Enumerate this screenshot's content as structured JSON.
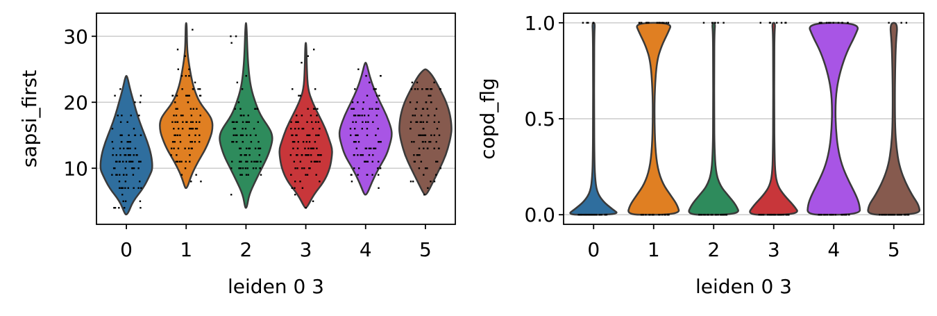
{
  "chart_data": [
    {
      "type": "violin",
      "ylabel": "sapsi_first",
      "xlabel": "leiden 0 3",
      "categories": [
        "0",
        "1",
        "2",
        "3",
        "4",
        "5"
      ],
      "colors": [
        "#2f6e9e",
        "#e07f22",
        "#2e8b5c",
        "#c8363a",
        "#a855e5",
        "#865a4e"
      ],
      "ylim": [
        1.5,
        33.5
      ],
      "yticks": [
        10,
        20,
        30
      ],
      "ytick_labels": [
        "10",
        "20",
        "30"
      ],
      "grid": true,
      "violins": [
        {
          "y": [
            3,
            5,
            7,
            9,
            10,
            12,
            14,
            16,
            18,
            20,
            22,
            24
          ],
          "density": [
            0.05,
            0.25,
            0.65,
            0.9,
            1.0,
            0.95,
            0.8,
            0.6,
            0.42,
            0.28,
            0.14,
            0.03
          ]
        },
        {
          "y": [
            7,
            9,
            11,
            13,
            15,
            16,
            17,
            18,
            20,
            22,
            24,
            27,
            29,
            32
          ],
          "density": [
            0.04,
            0.2,
            0.45,
            0.75,
            0.95,
            1.0,
            1.0,
            0.9,
            0.5,
            0.3,
            0.18,
            0.06,
            0.03,
            0.02
          ]
        },
        {
          "y": [
            4,
            6,
            8,
            10,
            12,
            14,
            15,
            16,
            18,
            20,
            22,
            24,
            27,
            32
          ],
          "density": [
            0.03,
            0.12,
            0.35,
            0.6,
            0.85,
            1.0,
            1.0,
            0.9,
            0.55,
            0.35,
            0.2,
            0.12,
            0.06,
            0.02
          ]
        },
        {
          "y": [
            4,
            6,
            8,
            10,
            12,
            13,
            14,
            16,
            18,
            20,
            22,
            25,
            29
          ],
          "density": [
            0.04,
            0.3,
            0.7,
            0.92,
            1.0,
            1.0,
            0.92,
            0.75,
            0.5,
            0.25,
            0.08,
            0.04,
            0.02
          ]
        },
        {
          "y": [
            6,
            8,
            10,
            12,
            14,
            15,
            16,
            18,
            20,
            22,
            24,
            26
          ],
          "density": [
            0.05,
            0.25,
            0.5,
            0.8,
            0.95,
            1.0,
            0.98,
            0.8,
            0.55,
            0.32,
            0.15,
            0.03
          ]
        },
        {
          "y": [
            6,
            8,
            10,
            12,
            14,
            15,
            16,
            18,
            20,
            22,
            24,
            25
          ],
          "density": [
            0.05,
            0.3,
            0.55,
            0.78,
            0.92,
            0.97,
            1.0,
            0.95,
            0.8,
            0.55,
            0.28,
            0.05
          ]
        }
      ]
    },
    {
      "type": "violin",
      "ylabel": "copd_flg",
      "xlabel": "leiden 0 3",
      "categories": [
        "0",
        "1",
        "2",
        "3",
        "4",
        "5"
      ],
      "colors": [
        "#2f6e9e",
        "#e07f22",
        "#2e8b5c",
        "#c8363a",
        "#a855e5",
        "#865a4e"
      ],
      "ylim": [
        -0.05,
        1.05
      ],
      "yticks": [
        0.0,
        0.5,
        1.0
      ],
      "ytick_labels": [
        "0.0",
        "0.5",
        "1.0"
      ],
      "grid": true,
      "violins": [
        {
          "y": [
            0,
            0.03,
            0.07,
            0.12,
            0.2,
            0.3,
            0.5,
            0.8,
            0.95,
            1.0
          ],
          "density": [
            1.0,
            0.7,
            0.35,
            0.12,
            0.05,
            0.03,
            0.02,
            0.02,
            0.03,
            0.05
          ]
        },
        {
          "y": [
            0,
            0.05,
            0.1,
            0.16,
            0.24,
            0.35,
            0.5,
            0.65,
            0.8,
            0.88,
            0.95,
            1.0
          ],
          "density": [
            1.0,
            0.9,
            0.65,
            0.35,
            0.15,
            0.06,
            0.03,
            0.04,
            0.12,
            0.3,
            0.55,
            0.7
          ]
        },
        {
          "y": [
            0,
            0.05,
            0.1,
            0.15,
            0.22,
            0.35,
            0.5,
            0.8,
            0.95,
            1.0
          ],
          "density": [
            1.0,
            0.85,
            0.55,
            0.25,
            0.08,
            0.03,
            0.02,
            0.02,
            0.03,
            0.06
          ]
        },
        {
          "y": [
            0,
            0.05,
            0.1,
            0.15,
            0.22,
            0.35,
            0.5,
            0.8,
            0.95,
            1.0
          ],
          "density": [
            1.0,
            0.75,
            0.4,
            0.15,
            0.05,
            0.03,
            0.02,
            0.02,
            0.03,
            0.06
          ]
        },
        {
          "y": [
            0,
            0.05,
            0.1,
            0.18,
            0.26,
            0.35,
            0.45,
            0.55,
            0.65,
            0.75,
            0.85,
            0.93,
            1.0
          ],
          "density": [
            1.0,
            0.98,
            0.85,
            0.55,
            0.3,
            0.15,
            0.08,
            0.06,
            0.1,
            0.25,
            0.5,
            0.8,
            1.0
          ]
        },
        {
          "y": [
            0,
            0.05,
            0.1,
            0.18,
            0.26,
            0.35,
            0.45,
            0.6,
            0.75,
            0.9,
            1.0
          ],
          "density": [
            1.0,
            0.95,
            0.7,
            0.4,
            0.2,
            0.1,
            0.05,
            0.04,
            0.05,
            0.08,
            0.15
          ]
        }
      ]
    }
  ]
}
